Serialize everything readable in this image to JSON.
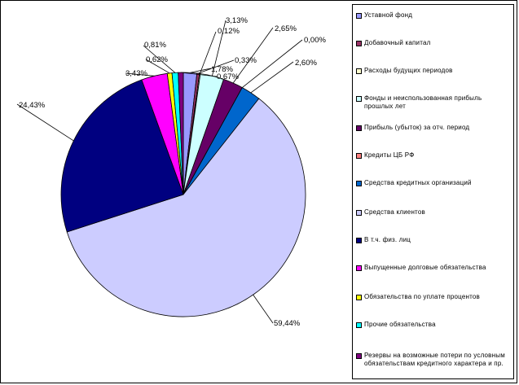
{
  "chart_data": {
    "type": "pie",
    "title": "",
    "legend_position": "right",
    "series": [
      {
        "name": "Уставной фонд",
        "value": 1.78,
        "label": "1,78%",
        "color": "#9999FF"
      },
      {
        "name": "Добавочный капитал",
        "value": 0.33,
        "label": "0,33%",
        "color": "#993366"
      },
      {
        "name": "Расходы будущих периодов",
        "value": 0.12,
        "label": "0,12%",
        "color": "#FFFFCC"
      },
      {
        "name": "Фонды и неиспользованная прибыль прошлых лет",
        "value": 3.13,
        "label": "3,13%",
        "color": "#CCFFFF"
      },
      {
        "name": "Прибыль (убыток) за отч. период",
        "value": 2.65,
        "label": "2,65%",
        "color": "#660066"
      },
      {
        "name": "Кредиты ЦБ РФ",
        "value": 0.0,
        "label": "0,00%",
        "color": "#FF8080"
      },
      {
        "name": "Средства кредитных организаций",
        "value": 2.6,
        "label": "2,60%",
        "color": "#0066CC"
      },
      {
        "name": "Средства клиентов",
        "value": 59.44,
        "label": "59,44%",
        "color": "#CCCCFF"
      },
      {
        "name": "В т.ч. физ. лиц",
        "value": 24.43,
        "label": "24,43%",
        "color": "#000080"
      },
      {
        "name": "Выпущенные долговые обязательства",
        "value": 3.43,
        "label": "3,43%",
        "color": "#FF00FF"
      },
      {
        "name": "Обязательства по уплате процентов",
        "value": 0.62,
        "label": "0,62%",
        "color": "#FFFF00"
      },
      {
        "name": "Прочие обязательства",
        "value": 0.81,
        "label": "0,81%",
        "color": "#00FFFF"
      },
      {
        "name": "Резервы на возможные потери по условным обязательствам кредитного характера и пр.",
        "value": 0.67,
        "label": "0,67%",
        "color": "#800080"
      }
    ]
  }
}
